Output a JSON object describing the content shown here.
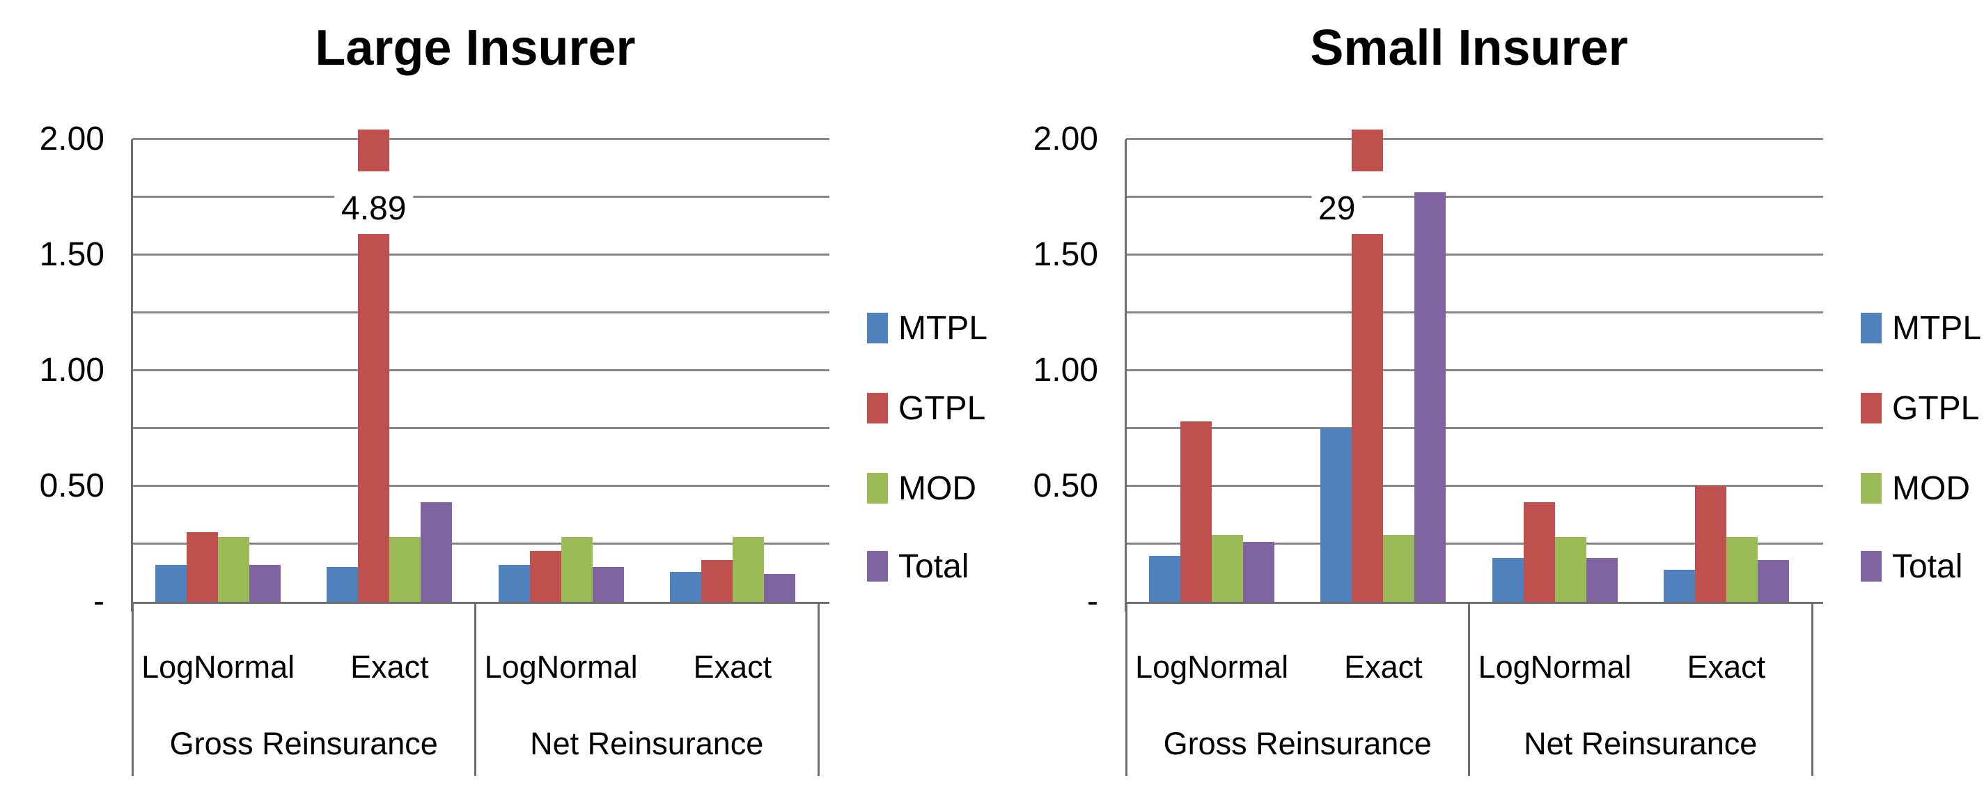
{
  "figure": {
    "background": "#ffffff",
    "text_color": "#000000",
    "grid_color": "#878787",
    "axis_color": "#6e6e6e",
    "data_label_background": "#ffffff"
  },
  "series_colors": {
    "MTPL": "#4F81BD",
    "GTPL": "#C0504D",
    "MOD": "#9BBB59",
    "Total": "#8064A2"
  },
  "chart_data": [
    {
      "type": "bar",
      "title": "Large Insurer",
      "series": [
        "MTPL",
        "GTPL",
        "MOD",
        "Total"
      ],
      "ylim": [
        0,
        2.0
      ],
      "gridline_step": 0.25,
      "grid": true,
      "legend_position": "right",
      "y_ticks": [
        {
          "value": 2.0,
          "label": "2.00"
        },
        {
          "value": 1.5,
          "label": "1.50"
        },
        {
          "value": 1.0,
          "label": "1.00"
        },
        {
          "value": 0.5,
          "label": "0.50"
        },
        {
          "value": 0.0,
          "label": "-"
        }
      ],
      "categories": [
        {
          "group": "Gross Reinsurance",
          "method": "LogNormal",
          "values": [
            0.16,
            0.3,
            0.28,
            0.16
          ]
        },
        {
          "group": "Gross Reinsurance",
          "method": "Exact",
          "values": [
            0.15,
            4.89,
            0.28,
            0.43
          ],
          "overflow": {
            "series": "GTPL",
            "value_label": "4.89",
            "drawn_top": 1.59
          }
        },
        {
          "group": "Net Reinsurance",
          "method": "LogNormal",
          "values": [
            0.16,
            0.22,
            0.28,
            0.15
          ]
        },
        {
          "group": "Net Reinsurance",
          "method": "Exact",
          "values": [
            0.13,
            0.18,
            0.28,
            0.12
          ]
        }
      ]
    },
    {
      "type": "bar",
      "title": "Small Insurer",
      "series": [
        "MTPL",
        "GTPL",
        "MOD",
        "Total"
      ],
      "ylim": [
        0,
        2.0
      ],
      "gridline_step": 0.25,
      "grid": true,
      "legend_position": "right",
      "y_ticks": [
        {
          "value": 2.0,
          "label": "2.00"
        },
        {
          "value": 1.5,
          "label": "1.50"
        },
        {
          "value": 1.0,
          "label": "1.00"
        },
        {
          "value": 0.5,
          "label": "0.50"
        },
        {
          "value": 0.0,
          "label": "-"
        }
      ],
      "categories": [
        {
          "group": "Gross Reinsurance",
          "method": "LogNormal",
          "values": [
            0.2,
            0.78,
            0.29,
            0.26
          ]
        },
        {
          "group": "Gross Reinsurance",
          "method": "Exact",
          "values": [
            0.75,
            29,
            0.29,
            1.77
          ],
          "overflow": {
            "series": "GTPL",
            "value_label": "29",
            "drawn_top": 1.59
          }
        },
        {
          "group": "Net Reinsurance",
          "method": "LogNormal",
          "values": [
            0.19,
            0.43,
            0.28,
            0.19
          ]
        },
        {
          "group": "Net Reinsurance",
          "method": "Exact",
          "values": [
            0.14,
            0.5,
            0.28,
            0.18
          ]
        }
      ]
    }
  ]
}
